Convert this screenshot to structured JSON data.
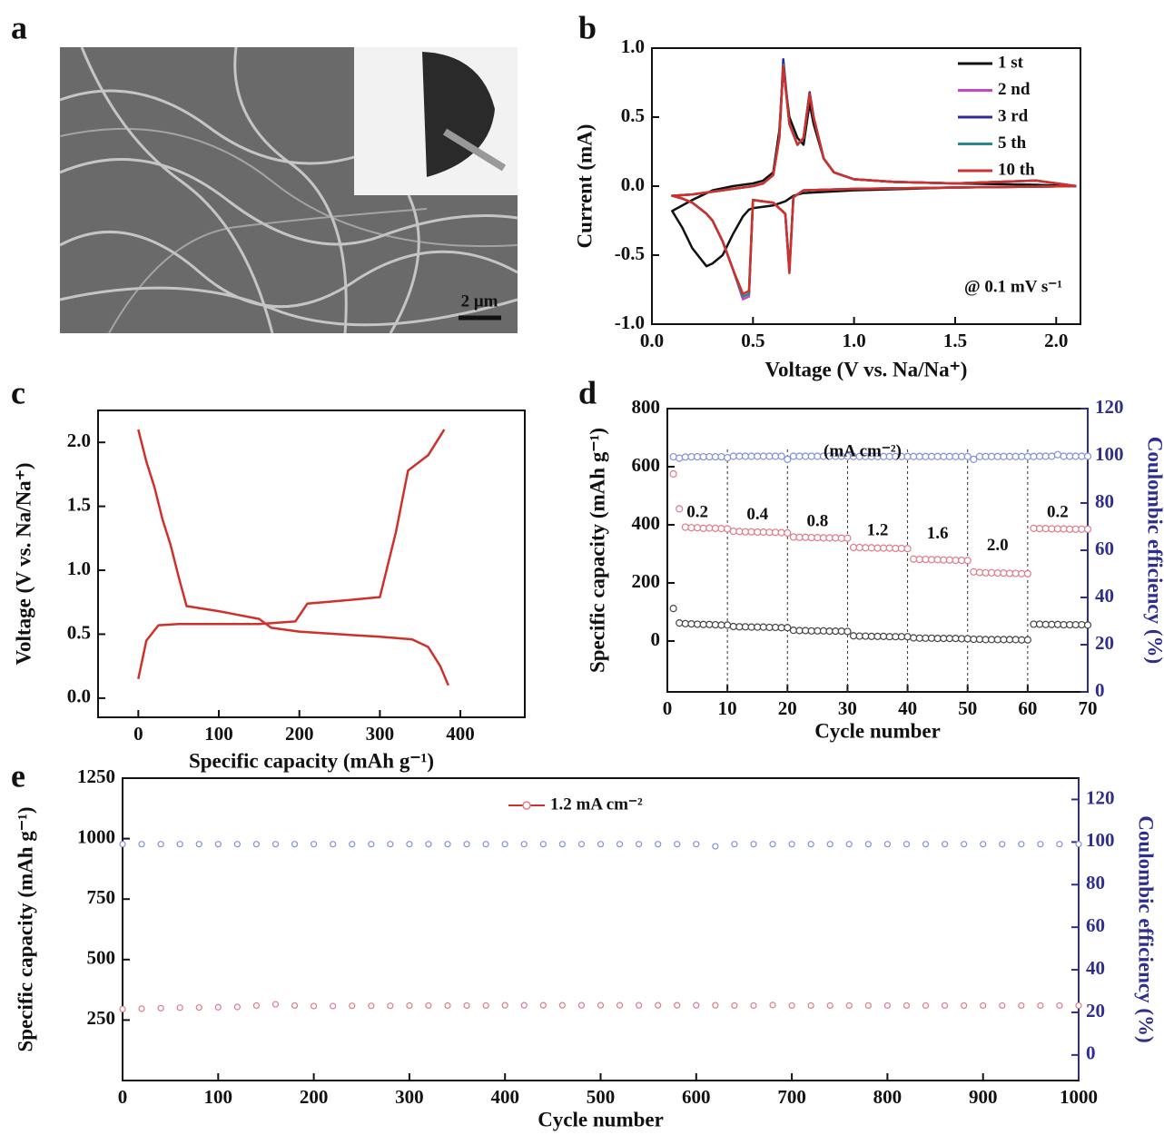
{
  "chart_data": [
    {
      "type": "image",
      "label": "a",
      "scale_bar": "2 μm"
    },
    {
      "type": "line",
      "label": "b",
      "x_label": "Voltage (V vs. Na/Na⁺)",
      "y_label": "Current (mA)",
      "annotation": "@ 0.1 mV s⁻¹",
      "xlim": [
        0,
        2.12
      ],
      "ylim": [
        -1,
        1
      ],
      "xticks": [
        {
          "value": 0,
          "label": "0.0"
        },
        {
          "value": 0.5,
          "label": "0.5"
        },
        {
          "value": 1,
          "label": "1.0"
        },
        {
          "value": 1.5,
          "label": "1.5"
        },
        {
          "value": 2,
          "label": "2.0"
        }
      ],
      "yticks": [
        {
          "value": -1,
          "label": "-1.0"
        },
        {
          "value": -0.5,
          "label": "-0.5"
        },
        {
          "value": 0,
          "label": "0.0"
        },
        {
          "value": 0.5,
          "label": "0.5"
        },
        {
          "value": 1,
          "label": "1.0"
        }
      ],
      "legend": "upper right",
      "x": [
        2.1,
        1.5,
        1.0,
        0.75,
        0.7,
        0.68,
        0.66,
        0.6,
        0.5,
        0.48,
        0.45,
        0.4,
        0.35,
        0.3,
        0.27,
        0.2,
        0.15,
        0.1,
        0.2,
        0.3,
        0.4,
        0.5,
        0.55,
        0.6,
        0.63,
        0.65,
        0.68,
        0.72,
        0.75,
        0.78,
        0.8,
        0.85,
        0.9,
        1.0,
        1.2,
        1.5,
        1.9,
        2.1
      ],
      "series": [
        {
          "name": "1 st",
          "color": "#111111",
          "values": [
            0.0,
            -0.01,
            -0.03,
            -0.05,
            -0.07,
            -0.09,
            -0.11,
            -0.14,
            -0.16,
            -0.17,
            -0.22,
            -0.35,
            -0.5,
            -0.56,
            -0.58,
            -0.45,
            -0.3,
            -0.18,
            -0.1,
            -0.03,
            0.0,
            0.02,
            0.04,
            0.1,
            0.4,
            0.85,
            0.5,
            0.35,
            0.3,
            0.6,
            0.45,
            0.2,
            0.1,
            0.05,
            0.03,
            0.02,
            0.01,
            0.0
          ]
        },
        {
          "name": "2 nd",
          "color": "#c845c8",
          "values": [
            0.0,
            -0.01,
            -0.02,
            -0.03,
            -0.08,
            -0.62,
            -0.2,
            -0.12,
            -0.1,
            -0.8,
            -0.82,
            -0.6,
            -0.4,
            -0.25,
            -0.2,
            -0.12,
            -0.09,
            -0.07,
            -0.06,
            -0.04,
            -0.02,
            0.0,
            0.02,
            0.08,
            0.35,
            0.9,
            0.45,
            0.3,
            0.35,
            0.68,
            0.5,
            0.2,
            0.1,
            0.05,
            0.03,
            0.02,
            0.04,
            0.0
          ]
        },
        {
          "name": "3 rd",
          "color": "#2b2b9a",
          "values": [
            0.0,
            -0.01,
            -0.02,
            -0.03,
            -0.08,
            -0.6,
            -0.2,
            -0.12,
            -0.1,
            -0.78,
            -0.8,
            -0.6,
            -0.4,
            -0.25,
            -0.2,
            -0.12,
            -0.09,
            -0.07,
            -0.06,
            -0.04,
            -0.02,
            0.0,
            0.02,
            0.08,
            0.35,
            0.92,
            0.45,
            0.3,
            0.35,
            0.68,
            0.5,
            0.2,
            0.1,
            0.05,
            0.03,
            0.02,
            0.04,
            0.0
          ]
        },
        {
          "name": "5 th",
          "color": "#2a8a8a",
          "values": [
            0.0,
            -0.01,
            -0.02,
            -0.03,
            -0.08,
            -0.6,
            -0.2,
            -0.12,
            -0.1,
            -0.78,
            -0.8,
            -0.6,
            -0.4,
            -0.25,
            -0.2,
            -0.12,
            -0.09,
            -0.07,
            -0.06,
            -0.04,
            -0.02,
            0.0,
            0.02,
            0.08,
            0.35,
            0.88,
            0.45,
            0.3,
            0.35,
            0.67,
            0.5,
            0.2,
            0.1,
            0.05,
            0.03,
            0.02,
            0.04,
            0.0
          ]
        },
        {
          "name": "10 th",
          "color": "#d0302a",
          "values": [
            0.0,
            -0.01,
            -0.02,
            -0.03,
            -0.08,
            -0.63,
            -0.2,
            -0.12,
            -0.1,
            -0.76,
            -0.78,
            -0.6,
            -0.4,
            -0.25,
            -0.2,
            -0.12,
            -0.09,
            -0.07,
            -0.06,
            -0.04,
            -0.02,
            0.0,
            0.02,
            0.08,
            0.35,
            0.87,
            0.45,
            0.3,
            0.35,
            0.67,
            0.5,
            0.2,
            0.1,
            0.05,
            0.03,
            0.02,
            0.04,
            0.0
          ]
        }
      ]
    },
    {
      "type": "line",
      "label": "c",
      "x_label": "Specific capacity (mAh g⁻¹)",
      "y_label": "Voltage (V vs. Na/Na⁺)",
      "xlim": [
        -50,
        480
      ],
      "ylim": [
        -0.15,
        2.25
      ],
      "xticks": [
        0,
        100,
        200,
        300,
        400
      ],
      "yticks": [
        {
          "value": 0,
          "label": "0.0"
        },
        {
          "value": 0.5,
          "label": "0.5"
        },
        {
          "value": 1,
          "label": "1.0"
        },
        {
          "value": 1.5,
          "label": "1.5"
        },
        {
          "value": 2,
          "label": "2.0"
        }
      ],
      "series": [
        {
          "color": "#d0302a",
          "x": [
            0,
            10,
            20,
            30,
            40,
            50,
            60,
            100,
            150,
            165,
            200,
            250,
            300,
            340,
            360,
            375,
            385
          ],
          "values": [
            2.1,
            1.85,
            1.65,
            1.4,
            1.2,
            0.95,
            0.72,
            0.68,
            0.62,
            0.55,
            0.52,
            0.5,
            0.48,
            0.46,
            0.4,
            0.25,
            0.1
          ]
        },
        {
          "color": "#d0302a",
          "x": [
            0,
            10,
            25,
            50,
            100,
            150,
            195,
            210,
            250,
            300,
            320,
            335,
            360,
            380
          ],
          "values": [
            0.15,
            0.45,
            0.57,
            0.58,
            0.58,
            0.58,
            0.6,
            0.74,
            0.76,
            0.79,
            1.3,
            1.78,
            1.9,
            2.1
          ]
        }
      ]
    },
    {
      "type": "scatter",
      "label": "d",
      "x_label": "Cycle number",
      "y_label": "Specific capacity (mAh g⁻¹)",
      "y2_label": "Coulombic efficiency (%)",
      "unit_label": "(mA cm⁻²)",
      "rate_labels": [
        "0.2",
        "0.4",
        "0.8",
        "1.2",
        "1.6",
        "2.0",
        "0.2"
      ],
      "vlines": [
        10,
        20,
        30,
        40,
        50,
        60
      ],
      "xlim": [
        0,
        70
      ],
      "ylim": [
        -175,
        800
      ],
      "y2lim": [
        0,
        120
      ],
      "xticks": [
        0,
        10,
        20,
        30,
        40,
        50,
        60,
        70
      ],
      "yticks": [
        0,
        200,
        400,
        600,
        800
      ],
      "y2ticks": [
        0,
        20,
        40,
        60,
        80,
        100,
        120
      ],
      "x": [
        1,
        2,
        3,
        4,
        5,
        6,
        7,
        8,
        9,
        10,
        11,
        12,
        13,
        14,
        15,
        16,
        17,
        18,
        19,
        20,
        21,
        22,
        23,
        24,
        25,
        26,
        27,
        28,
        29,
        30,
        31,
        32,
        33,
        34,
        35,
        36,
        37,
        38,
        39,
        40,
        41,
        42,
        43,
        44,
        45,
        46,
        47,
        48,
        49,
        50,
        51,
        52,
        53,
        54,
        55,
        56,
        57,
        58,
        59,
        60,
        61,
        62,
        63,
        64,
        65,
        66,
        67,
        68,
        69,
        70
      ],
      "series": [
        {
          "color": "#e07a8a",
          "values": [
            575,
            455,
            392,
            390,
            390,
            388,
            389,
            388,
            387,
            386,
            378,
            377,
            376,
            376,
            375,
            375,
            374,
            374,
            373,
            372,
            358,
            357,
            357,
            356,
            356,
            355,
            355,
            355,
            354,
            354,
            322,
            322,
            321,
            321,
            320,
            320,
            320,
            319,
            319,
            318,
            282,
            281,
            281,
            280,
            280,
            279,
            279,
            278,
            278,
            277,
            238,
            236,
            235,
            235,
            234,
            234,
            233,
            233,
            232,
            232,
            388,
            387,
            387,
            386,
            386,
            386,
            385,
            385,
            385,
            385
          ]
        },
        {
          "color": "#444444",
          "values": [
            112,
            62,
            60,
            59,
            58,
            57,
            57,
            56,
            55,
            55,
            50,
            49,
            49,
            48,
            48,
            48,
            47,
            47,
            46,
            46,
            37,
            36,
            36,
            35,
            35,
            35,
            34,
            34,
            34,
            33,
            18,
            17,
            17,
            16,
            16,
            16,
            15,
            15,
            15,
            15,
            11,
            10,
            10,
            10,
            9,
            9,
            9,
            9,
            8,
            8,
            6,
            6,
            5,
            5,
            5,
            5,
            5,
            5,
            4,
            4,
            58,
            58,
            57,
            57,
            57,
            56,
            56,
            56,
            56,
            55
          ]
        },
        {
          "color": "#8090dd",
          "axis": "y2",
          "values": [
            99.6,
            99,
            99.5,
            99.6,
            99.6,
            99.6,
            99.6,
            99.6,
            99.6,
            99.2,
            99.8,
            99.8,
            99.8,
            99.8,
            99.8,
            99.8,
            99.8,
            99.8,
            99.8,
            98.5,
            99.8,
            99.8,
            99.8,
            99.8,
            99.8,
            99.8,
            99.8,
            99.8,
            99.8,
            99.8,
            99.7,
            99.7,
            99.7,
            99.7,
            99.7,
            99.7,
            99.7,
            99.7,
            99.7,
            99.7,
            99.7,
            99.7,
            99.7,
            99.7,
            99.7,
            99.7,
            99.7,
            99.7,
            99.7,
            99.7,
            98.5,
            99.7,
            99.7,
            99.7,
            99.7,
            99.7,
            99.7,
            99.7,
            99.7,
            99.7,
            99.7,
            99.8,
            99.8,
            99.8,
            100.5,
            99.8,
            99.8,
            99.8,
            99.8,
            99.8
          ]
        }
      ]
    },
    {
      "type": "scatter",
      "label": "e",
      "x_label": "Cycle number",
      "y_label": "Specific capacity (mAh g⁻¹)",
      "y2_label": "Coulombic efficiency (%)",
      "legend": "upper center",
      "xlim": [
        0,
        1000
      ],
      "ylim": [
        0,
        1250
      ],
      "y2lim": [
        -12,
        130
      ],
      "xticks": [
        0,
        100,
        200,
        300,
        400,
        500,
        600,
        700,
        800,
        900,
        1000
      ],
      "yticks": [
        250,
        500,
        750,
        1000,
        1250
      ],
      "y2ticks": [
        0,
        20,
        40,
        60,
        80,
        100,
        120
      ],
      "x": [
        0,
        20,
        40,
        60,
        80,
        100,
        120,
        140,
        160,
        180,
        200,
        220,
        240,
        260,
        280,
        300,
        320,
        340,
        360,
        380,
        400,
        420,
        440,
        460,
        480,
        500,
        520,
        540,
        560,
        580,
        600,
        620,
        640,
        660,
        680,
        700,
        720,
        740,
        760,
        780,
        800,
        820,
        840,
        860,
        880,
        900,
        920,
        940,
        960,
        980,
        1000
      ],
      "series": [
        {
          "name": "1.2 mA cm⁻²",
          "color": "#e07a8a",
          "values": [
            295,
            297,
            299,
            301,
            302,
            303,
            304,
            310,
            315,
            310,
            308,
            308,
            309,
            309,
            309,
            310,
            310,
            310,
            310,
            310,
            311,
            311,
            311,
            311,
            311,
            311,
            311,
            311,
            311,
            311,
            311,
            311,
            310,
            310,
            312,
            310,
            310,
            310,
            310,
            310,
            310,
            310,
            310,
            310,
            310,
            310,
            310,
            310,
            310,
            310,
            310
          ]
        },
        {
          "color": "#8090dd",
          "axis": "y2",
          "values": [
            99,
            99,
            99,
            99,
            99,
            99,
            99,
            99,
            99,
            99,
            99,
            99,
            99,
            99,
            99,
            99,
            99,
            99,
            99,
            99,
            99,
            99,
            99,
            99,
            99,
            99,
            99,
            99,
            99,
            99,
            99,
            98,
            99,
            99,
            99,
            99,
            99,
            99,
            99,
            99,
            99,
            99,
            99,
            99,
            99,
            99,
            99,
            99,
            99,
            99,
            99
          ]
        }
      ]
    }
  ]
}
